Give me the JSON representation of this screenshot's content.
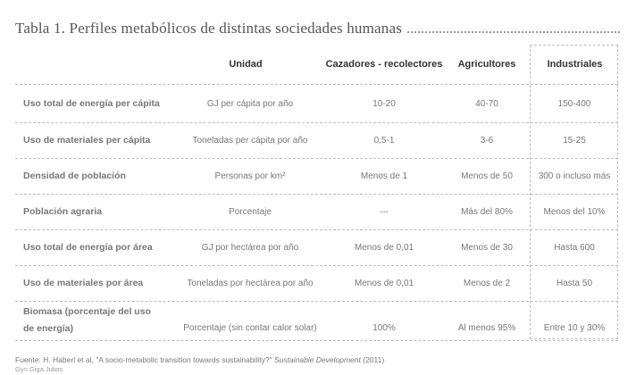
{
  "title": "Tabla 1. Perfiles metabólicos de distintas sociedades humanas",
  "headers": {
    "unidad": "Unidad",
    "cazadores": "Cazadores - recolectores",
    "agricultores": "Agricultores",
    "industriales": "Industriales"
  },
  "rows": [
    {
      "label": "Uso total de energía per cápita",
      "unidad": "GJ per cápita por año",
      "cazadores": "10-20",
      "agricultores": "40-70",
      "industriales": "150-400"
    },
    {
      "label": "Uso de materiales per cápita",
      "unidad": "Toneladas per cápita por año",
      "cazadores": "0,5-1",
      "agricultores": "3-6",
      "industriales": "15-25"
    },
    {
      "label": "Densidad de población",
      "unidad": "Personas por km²",
      "cazadores": "Menos de 1",
      "agricultores": "Menos de 50",
      "industriales": "300 o incluso más"
    },
    {
      "label": "Población agraria",
      "unidad": "Porcentaje",
      "cazadores": "---",
      "agricultores": "Más del 80%",
      "industriales": "Menos del 10%"
    },
    {
      "label": "Uso total de energía por área",
      "unidad": "GJ por hectárea por año",
      "cazadores": "Menos de 0,01",
      "agricultores": "Menos de 30",
      "industriales": "Hasta 600"
    },
    {
      "label": "Uso de materiales por área",
      "unidad": "Toneladas por hectárea por año",
      "cazadores": "Menos de 0,01",
      "agricultores": "Menos de 2",
      "industriales": "Hasta 50"
    },
    {
      "label_line1": "Biomasa (porcentaje del uso",
      "label_line2": "de energía)",
      "unidad": "Porcentaje (sin contar calor solar)",
      "cazadores": "100%",
      "agricultores": "Al menos 95%",
      "industriales": "Entre 10 y 30%"
    }
  ],
  "footer": {
    "source_prefix": "Fuente: H. Haberl et al, \"A socio-metabolic transition towards sustainability?\"",
    "source_journal": "Sustainable Development",
    "source_year": "(2011)",
    "credit": "Gy= Giga Julios"
  }
}
